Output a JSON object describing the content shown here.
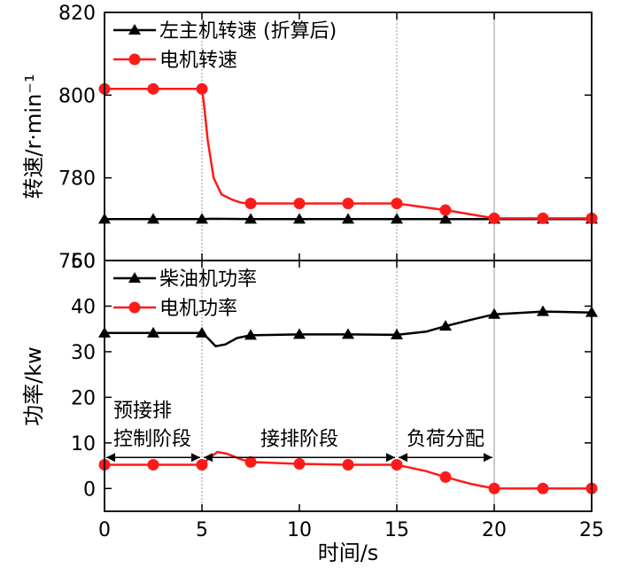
{
  "chart_data": [
    {
      "type": "line",
      "ylabel": "转速/r·min⁻¹",
      "xlabel": "",
      "xlim": [
        0,
        25
      ],
      "ylim": [
        760,
        820
      ],
      "xticks": [
        "0",
        "5",
        "10",
        "15",
        "20",
        "25"
      ],
      "yticks": [
        "760",
        "780",
        "800",
        "820"
      ],
      "vlines": [
        5,
        15,
        20
      ],
      "legend_position": "top-left",
      "series": [
        {
          "name": "左主机转速 (折算后)",
          "marker": "triangle",
          "color": "#000000",
          "x": [
            0,
            2.5,
            5,
            5.5,
            7.5,
            10,
            12.5,
            15,
            17.5,
            20,
            22.5,
            25
          ],
          "y": [
            770,
            770,
            770,
            770.1,
            770,
            770,
            770,
            770,
            770,
            770,
            770,
            770
          ],
          "marker_x": [
            0,
            2.5,
            5,
            7.5,
            10,
            12.5,
            15,
            17.5,
            20,
            22.5,
            25
          ]
        },
        {
          "name": "电机转速",
          "marker": "circle",
          "color": "#ff1a1a",
          "x": [
            0,
            2.5,
            5,
            5.1,
            5.3,
            5.6,
            6.0,
            6.5,
            7.0,
            7.5,
            10,
            12.5,
            15,
            17.5,
            20,
            22.5,
            25
          ],
          "y": [
            801.5,
            801.5,
            801.5,
            798,
            789,
            780,
            776,
            774.8,
            774,
            773.8,
            773.8,
            773.8,
            773.8,
            772.2,
            770.2,
            770.2,
            770.2
          ],
          "marker_x": [
            0,
            2.5,
            5,
            7.5,
            10,
            12.5,
            15,
            17.5,
            20,
            22.5,
            25
          ]
        }
      ]
    },
    {
      "type": "line",
      "ylabel": "功率/kw",
      "xlabel": "时间/s",
      "xlim": [
        0,
        25
      ],
      "ylim": [
        -5,
        50
      ],
      "xticks": [
        "0",
        "5",
        "10",
        "15",
        "20",
        "25"
      ],
      "yticks": [
        "0",
        "10",
        "20",
        "30",
        "40",
        "50"
      ],
      "vlines": [
        5,
        15,
        20
      ],
      "legend_position": "top-left",
      "series": [
        {
          "name": "柴油机功率",
          "marker": "triangle",
          "color": "#000000",
          "x": [
            0,
            2.5,
            5,
            5.3,
            5.7,
            6.2,
            6.8,
            7.5,
            10,
            12.5,
            15,
            16.5,
            17.5,
            18.8,
            20,
            22.5,
            25
          ],
          "y": [
            34.1,
            34.1,
            34.1,
            33,
            31.2,
            31.6,
            33,
            33.6,
            33.8,
            33.8,
            33.7,
            34.4,
            35.6,
            37,
            38.2,
            38.8,
            38.6
          ],
          "marker_x": [
            0,
            2.5,
            5,
            7.5,
            10,
            12.5,
            15,
            17.5,
            20,
            22.5,
            25
          ]
        },
        {
          "name": "电机功率",
          "marker": "circle",
          "color": "#ff1a1a",
          "x": [
            0,
            2.5,
            5,
            5.4,
            5.8,
            6.3,
            7.0,
            7.5,
            10,
            12.5,
            15,
            16.5,
            17.5,
            18.8,
            20,
            22.5,
            25
          ],
          "y": [
            5.2,
            5.2,
            5.2,
            6.8,
            8.0,
            7.6,
            6.4,
            5.8,
            5.4,
            5.2,
            5.2,
            3.8,
            2.5,
            1.0,
            0,
            0,
            0
          ],
          "marker_x": [
            0,
            2.5,
            5,
            7.5,
            10,
            12.5,
            15,
            17.5,
            20,
            22.5,
            25
          ]
        }
      ],
      "phases": [
        {
          "label_lines": [
            "预接排",
            "控制阶段"
          ],
          "from": 0,
          "to": 5
        },
        {
          "label_lines": [
            "接排阶段"
          ],
          "from": 5,
          "to": 15
        },
        {
          "label_lines": [
            "负荷分配"
          ],
          "from": 15,
          "to": 20
        }
      ]
    }
  ]
}
